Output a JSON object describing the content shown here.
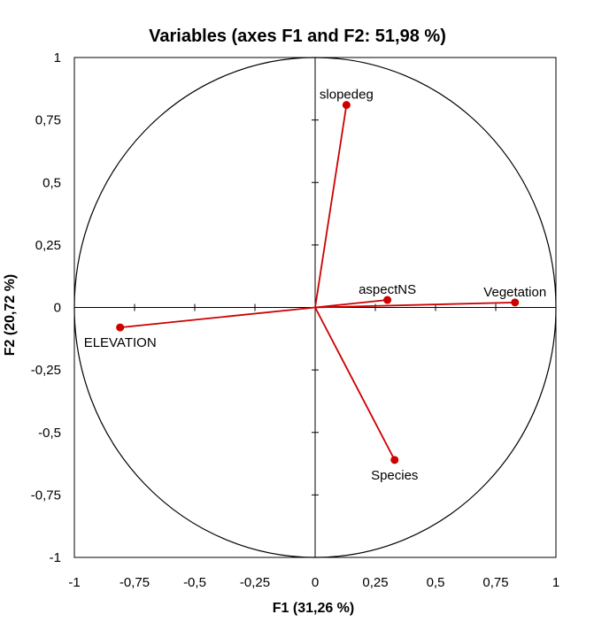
{
  "chart_data": {
    "type": "scatter",
    "title": "Variables (axes F1 and F2: 51,98 %)",
    "xlabel": "F1 (31,26 %)",
    "ylabel": "F2 (20,72 %)",
    "xlim": [
      -1,
      1
    ],
    "ylim": [
      -1,
      1
    ],
    "xticks": [
      -1,
      -0.75,
      -0.5,
      -0.25,
      0,
      0.25,
      0.5,
      0.75,
      1
    ],
    "yticks": [
      1,
      0.75,
      0.5,
      0.25,
      0,
      -0.25,
      -0.5,
      -0.75,
      -1
    ],
    "xtick_labels": [
      "-1",
      "-0,75",
      "-0,5",
      "-0,25",
      "0",
      "0,25",
      "0,5",
      "0,75",
      "1"
    ],
    "ytick_labels": [
      "1",
      "0,75",
      "0,5",
      "0,25",
      "0",
      "-0,25",
      "-0,5",
      "-0,75",
      "-1"
    ],
    "correlation_circle": true,
    "series_color": "#cc0000",
    "points": [
      {
        "name": "slopedeg",
        "x": 0.13,
        "y": 0.81,
        "label_pos": "above"
      },
      {
        "name": "aspectNS",
        "x": 0.3,
        "y": 0.03,
        "label_pos": "above"
      },
      {
        "name": "Vegetation",
        "x": 0.83,
        "y": 0.02,
        "label_pos": "above"
      },
      {
        "name": "ELEVATION",
        "x": -0.81,
        "y": -0.08,
        "label_pos": "below"
      },
      {
        "name": "Species",
        "x": 0.33,
        "y": -0.61,
        "label_pos": "below"
      }
    ]
  }
}
